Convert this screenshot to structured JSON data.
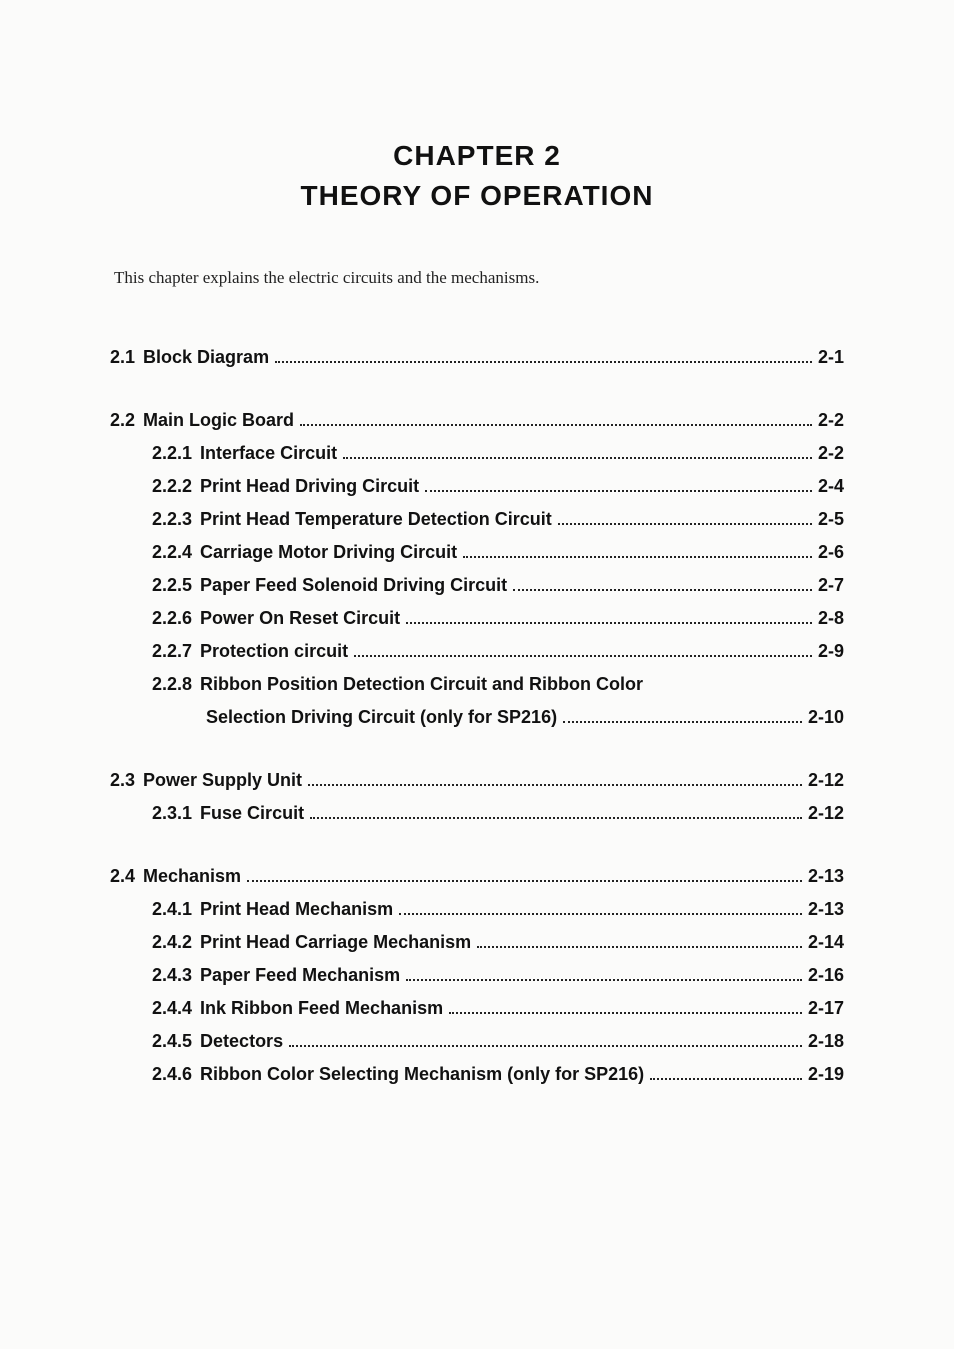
{
  "header": {
    "chapter": "CHAPTER 2",
    "title": "THEORY OF OPERATION"
  },
  "intro": "This chapter explains the electric circuits and the mechanisms.",
  "toc": {
    "s21": {
      "num": "2.1",
      "label": "Block Diagram",
      "page": "2-1"
    },
    "s22": {
      "num": "2.2",
      "label": "Main Logic Board",
      "page": "2-2"
    },
    "s221": {
      "num": "2.2.1",
      "label": "Interface Circuit",
      "page": "2-2"
    },
    "s222": {
      "num": "2.2.2",
      "label": "Print Head Driving Circuit",
      "page": "2-4"
    },
    "s223": {
      "num": "2.2.3",
      "label": "Print Head Temperature Detection Circuit",
      "page": "2-5"
    },
    "s224": {
      "num": "2.2.4",
      "label": "Carriage Motor Driving Circuit",
      "page": "2-6"
    },
    "s225": {
      "num": "2.2.5",
      "label": "Paper Feed Solenoid Driving Circuit",
      "page": "2-7"
    },
    "s226": {
      "num": "2.2.6",
      "label": "Power On Reset Circuit",
      "page": "2-8"
    },
    "s227": {
      "num": "2.2.7",
      "label": "Protection circuit",
      "page": "2-9"
    },
    "s228a": {
      "num": "2.2.8",
      "label": "Ribbon Position Detection Circuit and Ribbon Color"
    },
    "s228b": {
      "label": "Selection Driving Circuit (only for SP216)",
      "page": "2-10"
    },
    "s23": {
      "num": "2.3",
      "label": "Power Supply Unit",
      "page": "2-12"
    },
    "s231": {
      "num": "2.3.1",
      "label": "Fuse Circuit",
      "page": "2-12"
    },
    "s24": {
      "num": "2.4",
      "label": "Mechanism",
      "page": "2-13"
    },
    "s241": {
      "num": "2.4.1",
      "label": "Print Head Mechanism",
      "page": "2-13"
    },
    "s242": {
      "num": "2.4.2",
      "label": "Print Head Carriage Mechanism",
      "page": "2-14"
    },
    "s243": {
      "num": "2.4.3",
      "label": "Paper Feed Mechanism",
      "page": "2-16"
    },
    "s244": {
      "num": "2.4.4",
      "label": "Ink Ribbon Feed Mechanism",
      "page": "2-17"
    },
    "s245": {
      "num": "2.4.5",
      "label": "Detectors",
      "page": "2-18"
    },
    "s246": {
      "num": "2.4.6",
      "label": "Ribbon Color Selecting Mechanism (only for SP216)",
      "page": "2-19"
    }
  }
}
